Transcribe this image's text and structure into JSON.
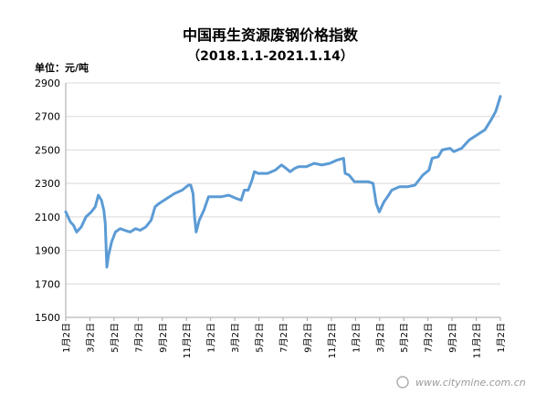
{
  "chart_data": {
    "type": "line",
    "title": "中国再生资源废钢价格指数",
    "subtitle": "（2018.1.1-2021.1.14）",
    "unit_label": "单位：元/吨",
    "ylim": [
      1500,
      2900
    ],
    "yticks": [
      1500,
      1700,
      1900,
      2100,
      2300,
      2500,
      2700,
      2900
    ],
    "xticks": [
      "1月2日",
      "3月2日",
      "5月2日",
      "7月2日",
      "9月2日",
      "11月2日",
      "1月2日",
      "3月2日",
      "5月2日",
      "7月2日",
      "9月2日",
      "11月2日",
      "1月2日",
      "3月2日",
      "5月2日",
      "7月2日",
      "9月2日",
      "11月2日",
      "1月2日"
    ],
    "grid": "horizontal",
    "legend": "none",
    "line_color": "#5b9bd5",
    "watermark": "www.citymine.com.cn",
    "series": [
      {
        "values": [
          [
            0.0,
            2130
          ],
          [
            0.6,
            2070
          ],
          [
            1.0,
            2050
          ],
          [
            1.4,
            2010
          ],
          [
            2.0,
            2040
          ],
          [
            2.6,
            2100
          ],
          [
            3.3,
            2130
          ],
          [
            3.8,
            2160
          ],
          [
            4.2,
            2230
          ],
          [
            4.6,
            2200
          ],
          [
            4.9,
            2140
          ],
          [
            5.1,
            2060
          ],
          [
            5.3,
            1800
          ],
          [
            5.5,
            1870
          ],
          [
            5.9,
            1950
          ],
          [
            6.4,
            2010
          ],
          [
            7.0,
            2030
          ],
          [
            7.6,
            2020
          ],
          [
            8.3,
            2010
          ],
          [
            9.0,
            2030
          ],
          [
            9.6,
            2020
          ],
          [
            10.3,
            2040
          ],
          [
            11.0,
            2080
          ],
          [
            11.5,
            2160
          ],
          [
            12.0,
            2180
          ],
          [
            13.0,
            2210
          ],
          [
            14.0,
            2240
          ],
          [
            15.0,
            2260
          ],
          [
            15.8,
            2290
          ],
          [
            16.1,
            2290
          ],
          [
            16.4,
            2240
          ],
          [
            16.6,
            2100
          ],
          [
            16.8,
            2010
          ],
          [
            17.2,
            2080
          ],
          [
            17.8,
            2140
          ],
          [
            18.4,
            2220
          ],
          [
            19.0,
            2220
          ],
          [
            20.0,
            2220
          ],
          [
            21.0,
            2230
          ],
          [
            22.0,
            2210
          ],
          [
            22.6,
            2200
          ],
          [
            23.0,
            2260
          ],
          [
            23.5,
            2260
          ],
          [
            24.0,
            2320
          ],
          [
            24.3,
            2370
          ],
          [
            24.8,
            2360
          ],
          [
            26.0,
            2360
          ],
          [
            27.0,
            2380
          ],
          [
            27.8,
            2410
          ],
          [
            28.4,
            2390
          ],
          [
            28.9,
            2370
          ],
          [
            29.5,
            2390
          ],
          [
            30.0,
            2400
          ],
          [
            31.0,
            2400
          ],
          [
            32.0,
            2420
          ],
          [
            33.0,
            2410
          ],
          [
            34.0,
            2420
          ],
          [
            35.0,
            2440
          ],
          [
            35.8,
            2450
          ],
          [
            36.0,
            2360
          ],
          [
            36.5,
            2350
          ],
          [
            37.2,
            2310
          ],
          [
            38.0,
            2310
          ],
          [
            39.0,
            2310
          ],
          [
            39.6,
            2300
          ],
          [
            40.0,
            2180
          ],
          [
            40.4,
            2130
          ],
          [
            41.0,
            2190
          ],
          [
            41.6,
            2230
          ],
          [
            42.0,
            2260
          ],
          [
            43.0,
            2280
          ],
          [
            44.0,
            2280
          ],
          [
            45.0,
            2290
          ],
          [
            46.0,
            2350
          ],
          [
            46.8,
            2380
          ],
          [
            47.2,
            2450
          ],
          [
            48.0,
            2460
          ],
          [
            48.5,
            2500
          ],
          [
            49.5,
            2510
          ],
          [
            50.0,
            2490
          ],
          [
            51.0,
            2510
          ],
          [
            52.0,
            2560
          ],
          [
            53.0,
            2590
          ],
          [
            54.0,
            2620
          ],
          [
            54.8,
            2680
          ],
          [
            55.4,
            2730
          ],
          [
            56.0,
            2820
          ]
        ]
      }
    ]
  }
}
